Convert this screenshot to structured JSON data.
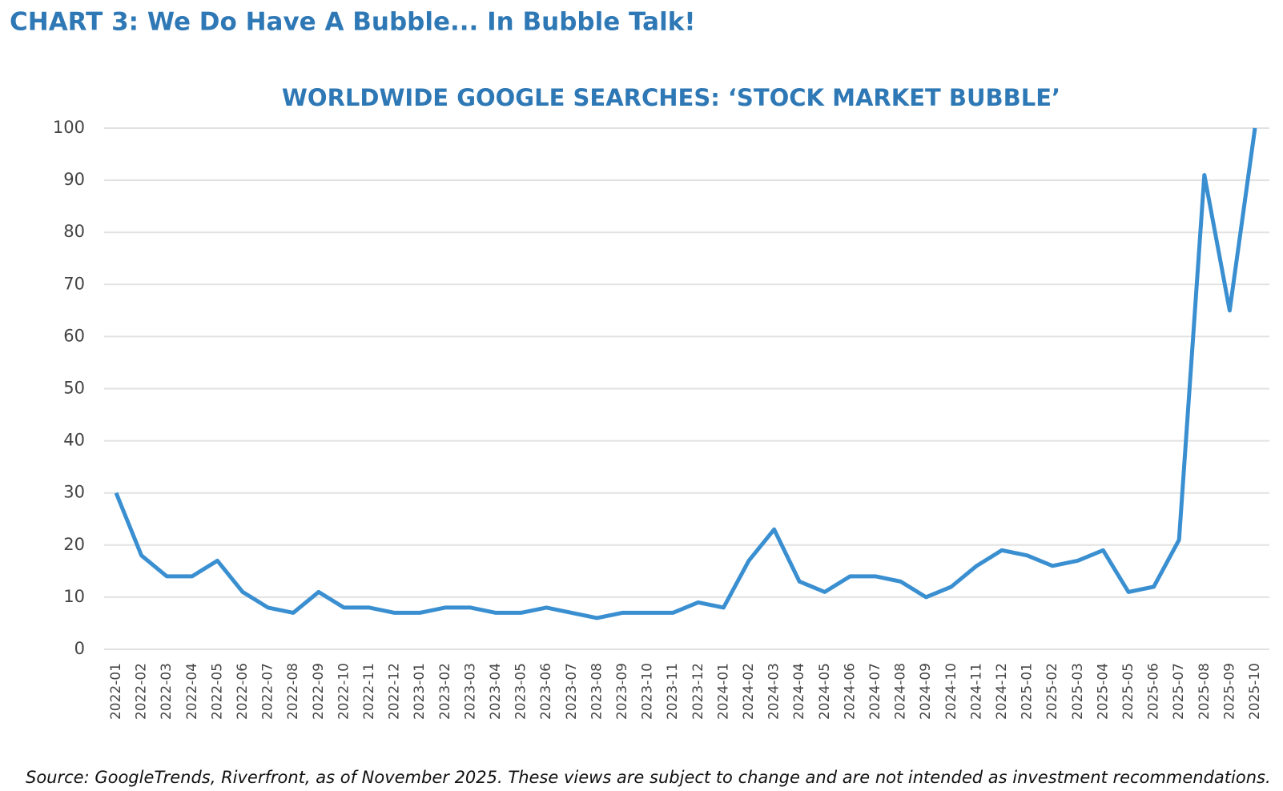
{
  "chart_data": {
    "type": "line",
    "title": "CHART 3: We Do Have A Bubble... In Bubble Talk!",
    "subtitle": "WORLDWIDE GOOGLE SEARCHES: ‘STOCK MARKET BUBBLE’",
    "source": "Source: GoogleTrends, Riverfront, as of November 2025. These views are subject to change and are not intended as investment recommendations.",
    "categories": [
      "2022-01",
      "2022-02",
      "2022-03",
      "2022-04",
      "2022-05",
      "2022-06",
      "2022-07",
      "2022-08",
      "2022-09",
      "2022-10",
      "2022-11",
      "2022-12",
      "2023-01",
      "2023-02",
      "2023-03",
      "2023-04",
      "2023-05",
      "2023-06",
      "2023-07",
      "2023-08",
      "2023-09",
      "2023-10",
      "2023-11",
      "2023-12",
      "2024-01",
      "2024-02",
      "2024-03",
      "2024-04",
      "2024-05",
      "2024-06",
      "2024-07",
      "2024-08",
      "2024-09",
      "2024-10",
      "2024-11",
      "2024-12",
      "2025-01",
      "2025-02",
      "2025-03",
      "2025-04",
      "2025-05",
      "2025-06",
      "2025-07",
      "2025-08",
      "2025-09",
      "2025-10"
    ],
    "values": [
      30,
      18,
      14,
      14,
      17,
      11,
      8,
      7,
      11,
      8,
      8,
      7,
      7,
      8,
      8,
      7,
      7,
      8,
      7,
      6,
      7,
      7,
      7,
      9,
      8,
      17,
      23,
      13,
      11,
      14,
      14,
      13,
      10,
      12,
      16,
      19,
      18,
      16,
      17,
      19,
      11,
      12,
      21,
      91,
      65,
      100
    ],
    "color": "#3a8fd1",
    "ylim": [
      0,
      100
    ],
    "yticks": [
      0,
      10,
      20,
      30,
      40,
      50,
      60,
      70,
      80,
      90,
      100
    ],
    "grid": true
  }
}
